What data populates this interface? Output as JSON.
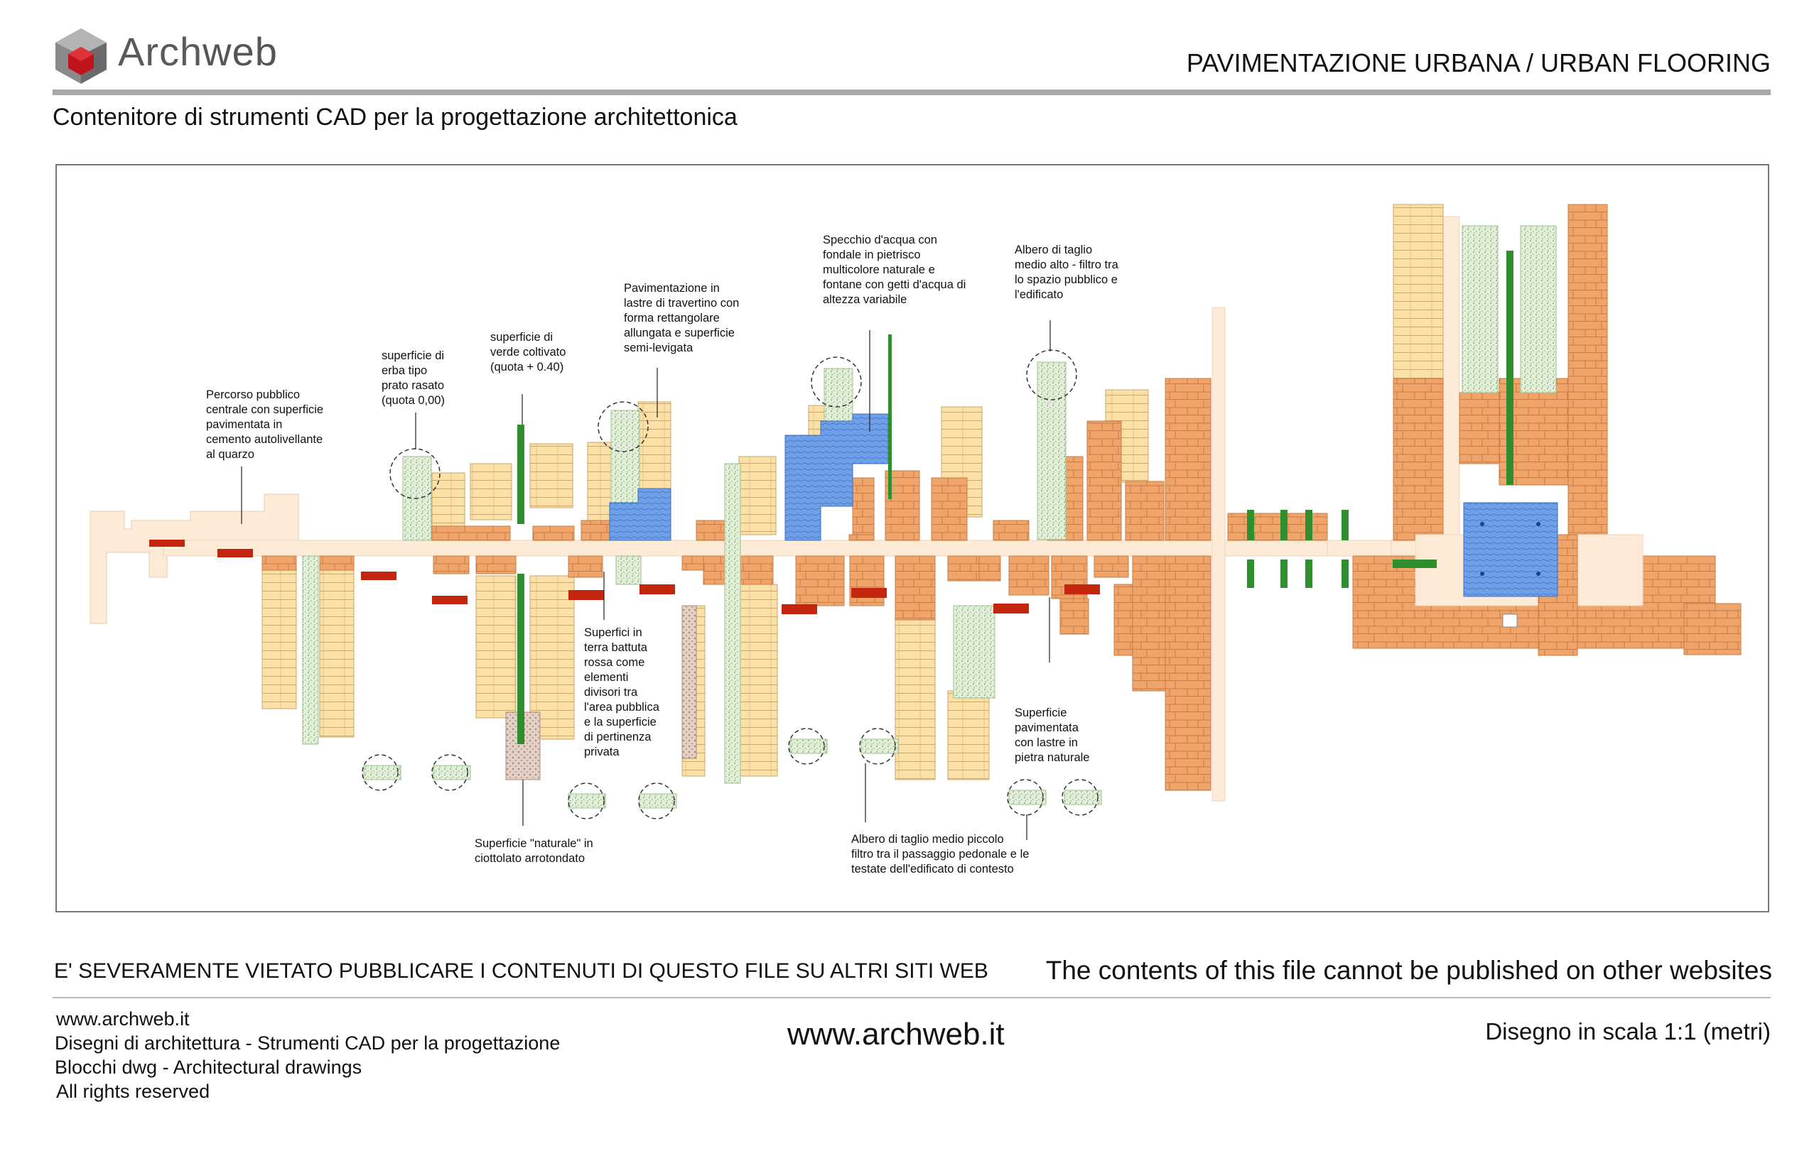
{
  "header": {
    "logo_text_1": "Arch",
    "logo_text_2": "web",
    "page_title": "PAVIMENTAZIONE URBANA  /  URBAN FLOORING",
    "subtitle": "Contenitore di strumenti CAD per la progettazione architettonica"
  },
  "annotations": {
    "central_path": "Percorso pubblico\ncentrale con superficie\npavimentata in\ncemento autolivellante\nal quarzo",
    "grass": "superficie di\nerba tipo\nprato rasato\n(quota 0,00)",
    "green_raised": "superficie di\nverde coltivato\n(quota + 0.40)",
    "travertine": "Pavimentazione in\nlastre di travertino con\nforma rettangolare\nallungata e superficie\nsemi-levigata",
    "water": "Specchio d'acqua con\nfondale in pietrisco\nmulticolore naturale e\nfontane con getti d'acqua di\naltezza variabile",
    "tall_tree": "Albero di taglio\nmedio alto - filtro tra\nlo spazio pubblico e\nl'edificato",
    "red_earth": "Superfici in\nterra battuta\nrossa come\nelementi\ndivisori tra\nl'area pubblica\ne la superficie\ndi pertinenza\nprivata",
    "stone": "Superficie\npavimentata\ncon lastre in\npietra naturale",
    "pebbles": "Superficie \"naturale\" in\nciottolato arrotondato",
    "small_tree": "Albero di taglio medio piccolo\nfiltro tra il passaggio pedonale e le\ntestate dell'edificato di contesto"
  },
  "colors": {
    "path": "#fdebd7",
    "travertine": "#fbe1a8",
    "stone": "#efa46a",
    "grass": "#dcebd2",
    "green_bar": "#2f8f2f",
    "water": "#6f9fe6",
    "red_earth": "#c4250e",
    "pebbles": "#d8c2b4"
  },
  "footer": {
    "warning_it": "E' SEVERAMENTE VIETATO PUBBLICARE I CONTENUTI DI QUESTO FILE SU ALTRI SITI WEB",
    "warning_en": "The contents of this file cannot be published on other websites",
    "line_1": "www.archweb.it",
    "line_2": "Disegni di architettura - Strumenti CAD  per la progettazione",
    "line_3": "Blocchi dwg - Architectural drawings",
    "line_4": "All rights reserved",
    "center_url": "www.archweb.it",
    "scale": "Disegno in scala 1:1 (metri)"
  }
}
